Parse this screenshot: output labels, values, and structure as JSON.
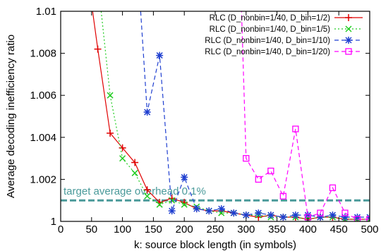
{
  "chart_data": {
    "type": "line",
    "title": "",
    "xlabel": "k: source block length (in symbols)",
    "ylabel": "Average decoding inefficiency ratio",
    "xlim": [
      0,
      500
    ],
    "ylim": [
      1.0,
      1.01
    ],
    "xticks": [
      0,
      50,
      100,
      150,
      200,
      250,
      300,
      350,
      400,
      450,
      500
    ],
    "yticks": [
      {
        "value": 1.0,
        "label": "1"
      },
      {
        "value": 1.002,
        "label": "1.002"
      },
      {
        "value": 1.004,
        "label": "1.004"
      },
      {
        "value": 1.006,
        "label": "1.006"
      },
      {
        "value": 1.008,
        "label": "1.008"
      },
      {
        "value": 1.01,
        "label": "1.01"
      }
    ],
    "grid": false,
    "legend_position": "top-right",
    "reference_line": {
      "y": 1.001,
      "label": "target average overhead 0.1%",
      "color": "#4a9a9a"
    },
    "series": [
      {
        "name": "RLC (D_nonbin=1/40, D_bin=1/2)",
        "color": "#e00000",
        "marker": "plus",
        "dash": "solid",
        "x": [
          40,
          60,
          80,
          100,
          120,
          140,
          160,
          180,
          200,
          220,
          240,
          260,
          280,
          300,
          320,
          340,
          360,
          380,
          400,
          420,
          440,
          460,
          480,
          500
        ],
        "y": [
          1.0125,
          1.0082,
          1.0042,
          1.0035,
          1.0028,
          1.0015,
          1.0009,
          1.0011,
          1.0009,
          1.0006,
          1.0005,
          1.0005,
          1.0004,
          1.0003,
          1.0002,
          1.0003,
          1.0002,
          1.0002,
          1.0001,
          1.0002,
          1.0002,
          1.0001,
          1.0001,
          1.0001
        ]
      },
      {
        "name": "RLC (D_nonbin=1/40, D_bin=1/5)",
        "color": "#22cc22",
        "marker": "cross",
        "dash": "dotted",
        "x": [
          60,
          80,
          100,
          120,
          140,
          160,
          180,
          200,
          220,
          240,
          260,
          280,
          300,
          320,
          340,
          360,
          380,
          400,
          420,
          440,
          460,
          480,
          500
        ],
        "y": [
          1.0115,
          1.006,
          1.003,
          1.0023,
          1.0012,
          1.0008,
          1.001,
          1.0008,
          1.0007,
          1.0005,
          1.0004,
          1.0004,
          1.0003,
          1.0003,
          1.0002,
          1.0002,
          1.0002,
          1.0001,
          1.0002,
          1.0002,
          1.0001,
          1.0001,
          1.0001
        ]
      },
      {
        "name": "RLC (D_nonbin=1/40, D_bin=1/10)",
        "color": "#1f3fd0",
        "marker": "asterisk",
        "dash": "dashed",
        "x": [
          125,
          140,
          160,
          180,
          200,
          220,
          240,
          260,
          280,
          300,
          320,
          340,
          360,
          380,
          400,
          420,
          440,
          460,
          480,
          500
        ],
        "y": [
          1.012,
          1.0052,
          1.0079,
          1.0005,
          1.0021,
          1.0006,
          1.0005,
          1.0006,
          1.0004,
          1.0003,
          1.0004,
          1.0003,
          1.0002,
          1.0003,
          1.0003,
          1.0002,
          1.0003,
          1.0002,
          1.0002,
          1.0002
        ]
      },
      {
        "name": "RLC (D_nonbin=1/40, D_bin=1/20)",
        "color": "#ff00ff",
        "marker": "square",
        "dash": "dashed",
        "x": [
          290,
          300,
          320,
          340,
          360,
          380,
          400,
          420,
          440,
          460,
          480,
          500
        ],
        "y": [
          1.0125,
          1.003,
          1.002,
          1.0024,
          1.0012,
          1.0044,
          1.0002,
          1.0004,
          1.0016,
          1.0004,
          1.0001,
          1.0001
        ]
      }
    ]
  }
}
